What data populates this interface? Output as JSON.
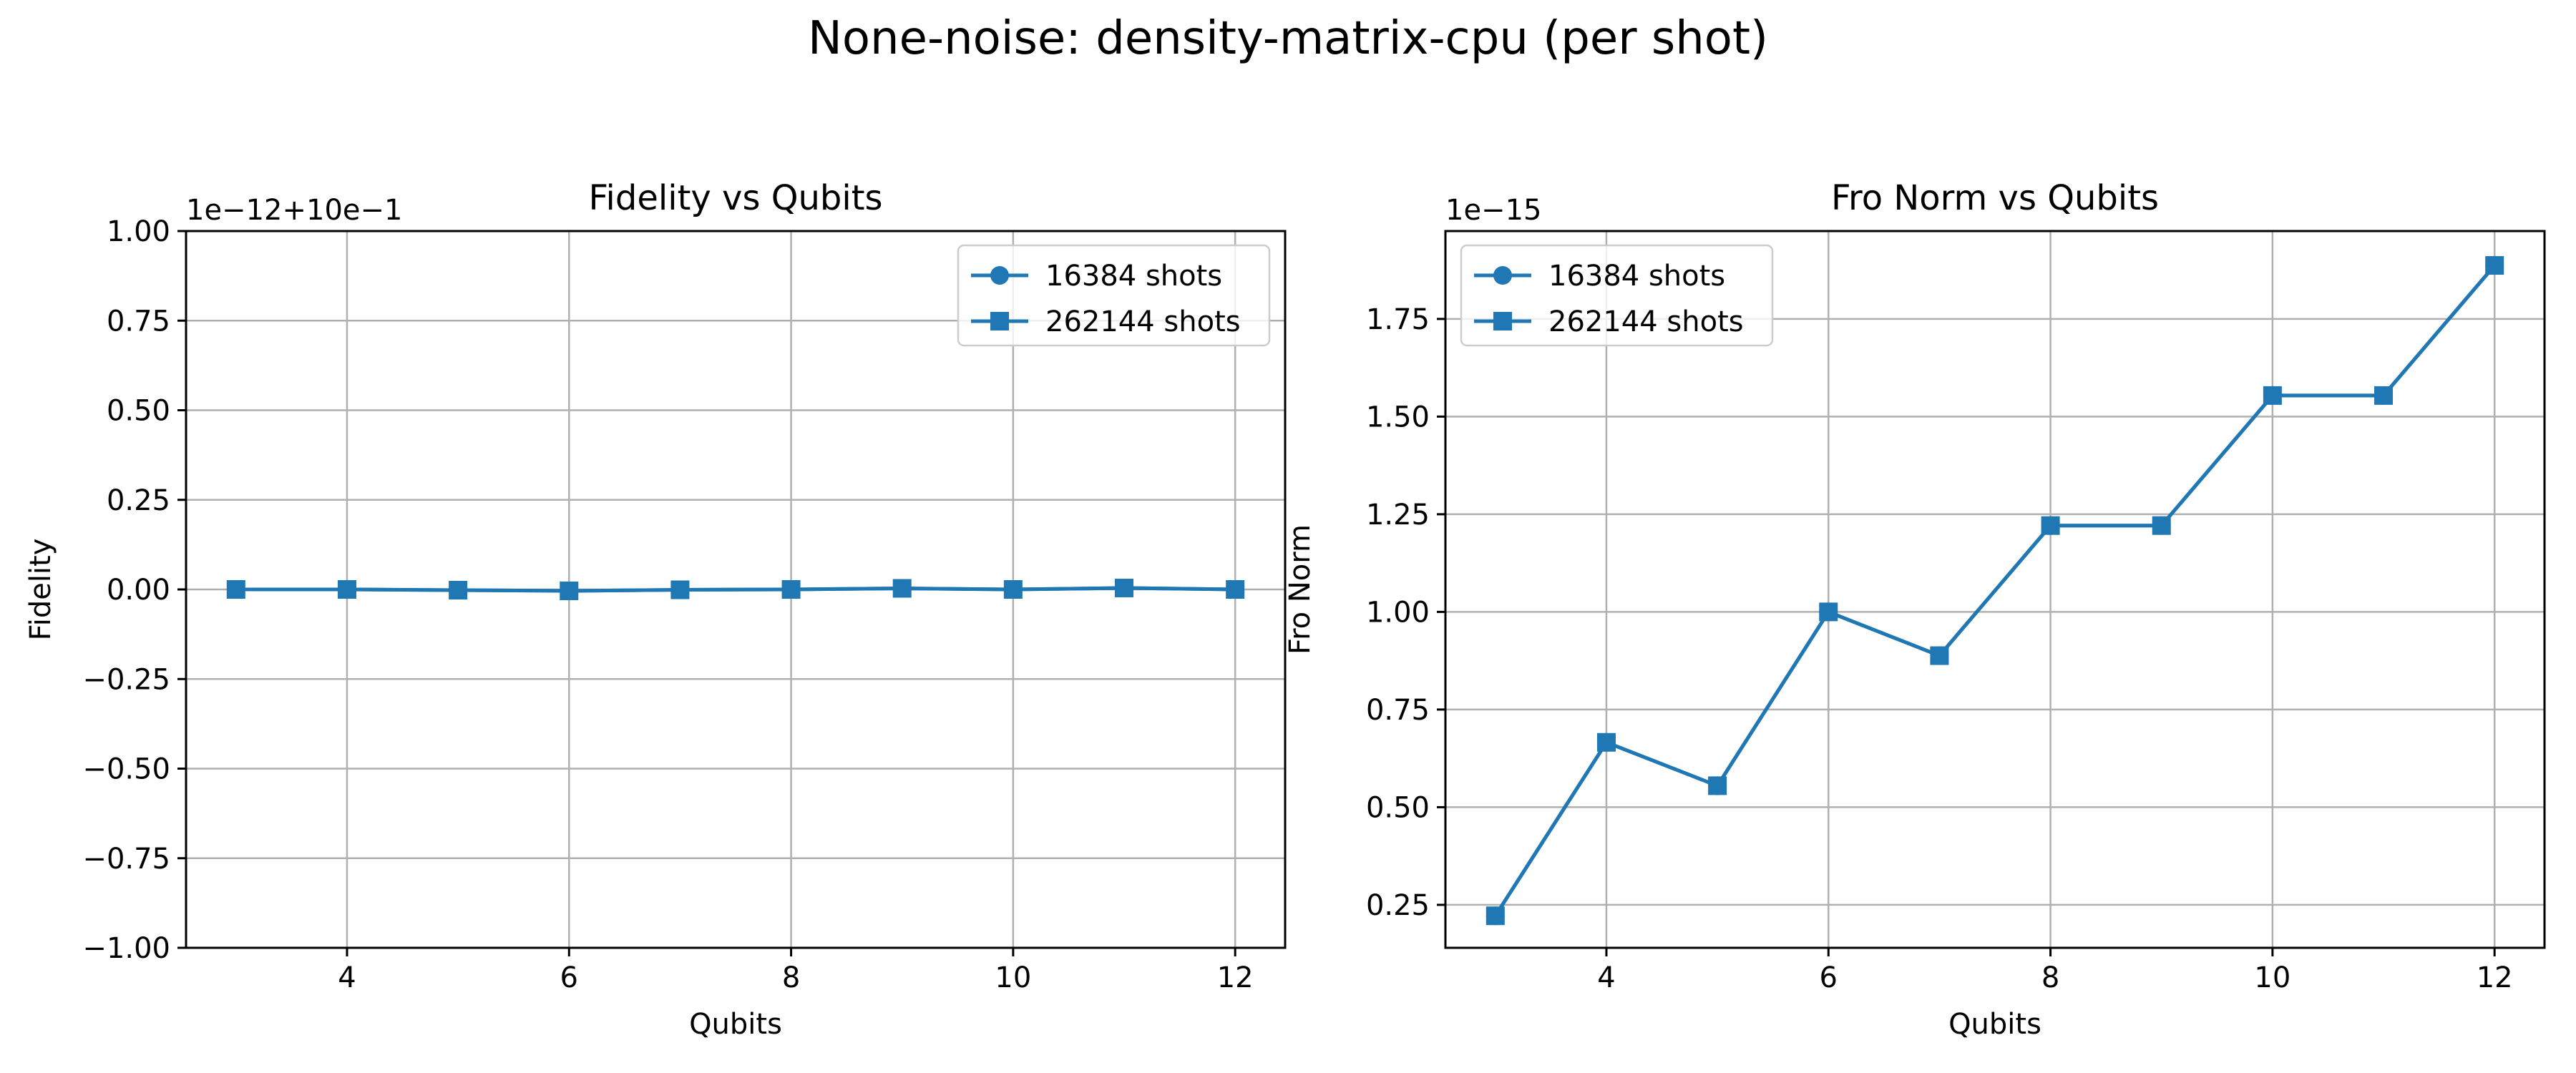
{
  "figure_title": "None-noise: density-matrix-cpu (per shot)",
  "colors": {
    "series": "#1f77b4",
    "grid": "#b0b0b0"
  },
  "chart_data": [
    {
      "type": "line",
      "title": "Fidelity vs Qubits",
      "xlabel": "Qubits",
      "ylabel": "Fidelity",
      "offset_text": "1e−12+10e−1",
      "xlim": [
        2.55,
        12.45
      ],
      "ylim": [
        -1.0,
        1.0
      ],
      "xticks": [
        4,
        6,
        8,
        10,
        12
      ],
      "xtick_labels": [
        "4",
        "6",
        "8",
        "10",
        "12"
      ],
      "yticks": [
        -1.0,
        -0.75,
        -0.5,
        -0.25,
        0.0,
        0.25,
        0.5,
        0.75,
        1.0
      ],
      "ytick_labels": [
        "−1.00",
        "−0.75",
        "−0.50",
        "−0.25",
        "0.00",
        "0.25",
        "0.50",
        "0.75",
        "1.00"
      ],
      "grid": true,
      "legend_position": "top-right",
      "x": [
        3,
        4,
        5,
        6,
        7,
        8,
        9,
        10,
        11,
        12
      ],
      "series": [
        {
          "name": "16384 shots",
          "marker": "circle",
          "values": [
            0.0,
            0.0,
            -0.002,
            -0.004,
            -0.001,
            0.0,
            0.003,
            0.0,
            0.004,
            0.0
          ]
        },
        {
          "name": "262144 shots",
          "marker": "square",
          "values": [
            0.0,
            0.0,
            -0.002,
            -0.004,
            -0.001,
            0.0,
            0.003,
            0.0,
            0.004,
            0.0
          ]
        }
      ]
    },
    {
      "type": "line",
      "title": "Fro Norm vs Qubits",
      "xlabel": "Qubits",
      "ylabel": "Fro Norm",
      "offset_text": "1e−15",
      "xlim": [
        2.55,
        12.45
      ],
      "ylim": [
        0.14,
        1.975
      ],
      "xticks": [
        4,
        6,
        8,
        10,
        12
      ],
      "xtick_labels": [
        "4",
        "6",
        "8",
        "10",
        "12"
      ],
      "yticks": [
        0.25,
        0.5,
        0.75,
        1.0,
        1.25,
        1.5,
        1.75
      ],
      "ytick_labels": [
        "0.25",
        "0.50",
        "0.75",
        "1.00",
        "1.25",
        "1.50",
        "1.75"
      ],
      "grid": true,
      "legend_position": "top-left",
      "x": [
        3,
        4,
        5,
        6,
        7,
        8,
        9,
        10,
        11,
        12
      ],
      "series": [
        {
          "name": "16384 shots",
          "marker": "circle",
          "values": [
            0.222,
            0.666,
            0.555,
            1.0,
            0.888,
            1.221,
            1.221,
            1.554,
            1.554,
            1.887
          ]
        },
        {
          "name": "262144 shots",
          "marker": "square",
          "values": [
            0.222,
            0.666,
            0.555,
            1.0,
            0.888,
            1.221,
            1.221,
            1.554,
            1.554,
            1.887
          ]
        }
      ]
    }
  ]
}
